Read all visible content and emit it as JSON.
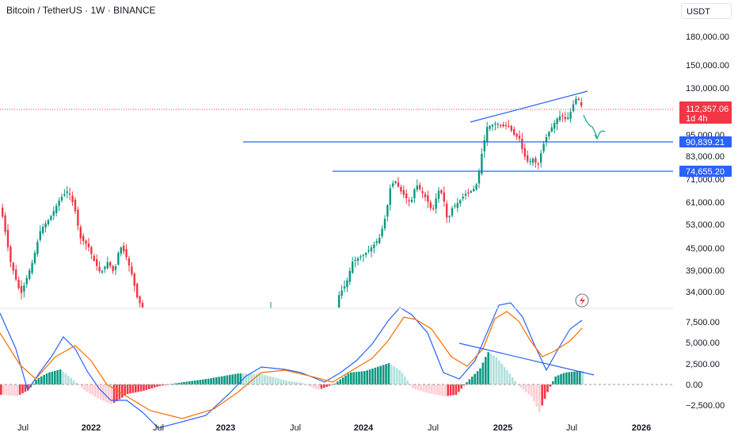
{
  "header": {
    "title": "Bitcoin / TetherUS · 1W · BINANCE",
    "currency": "USDT"
  },
  "price_axis": [
    "180,000.00",
    "150,000.00",
    "130,000.00",
    "95,000.00",
    "83,000.00",
    "71,000.00",
    "61,000.00",
    "53,000.00",
    "45,000.00",
    "39,000.00",
    "34,000.00"
  ],
  "badges": {
    "last_price": "112,357.06",
    "countdown": "1d 4h",
    "level_upper": "90,839.21",
    "level_lower": "74,655.20",
    "colors": {
      "last": "#f23645",
      "level": "#2962ff"
    }
  },
  "macd_axis": [
    "7,500.00",
    "5,000.00",
    "2,500.00",
    "0.00",
    "−2,500.00"
  ],
  "time_axis": [
    "Jul",
    "2022",
    "Jul",
    "2023",
    "Jul",
    "2024",
    "Jul",
    "2025",
    "Jul",
    "2026"
  ],
  "icons": {
    "lightning": "flash-icon"
  },
  "colors": {
    "up": "#089981",
    "down": "#f23645",
    "macd": "#2962ff",
    "signal": "#ff6d00",
    "trendline": "#2962ff",
    "projection": "#22ab94"
  }
}
